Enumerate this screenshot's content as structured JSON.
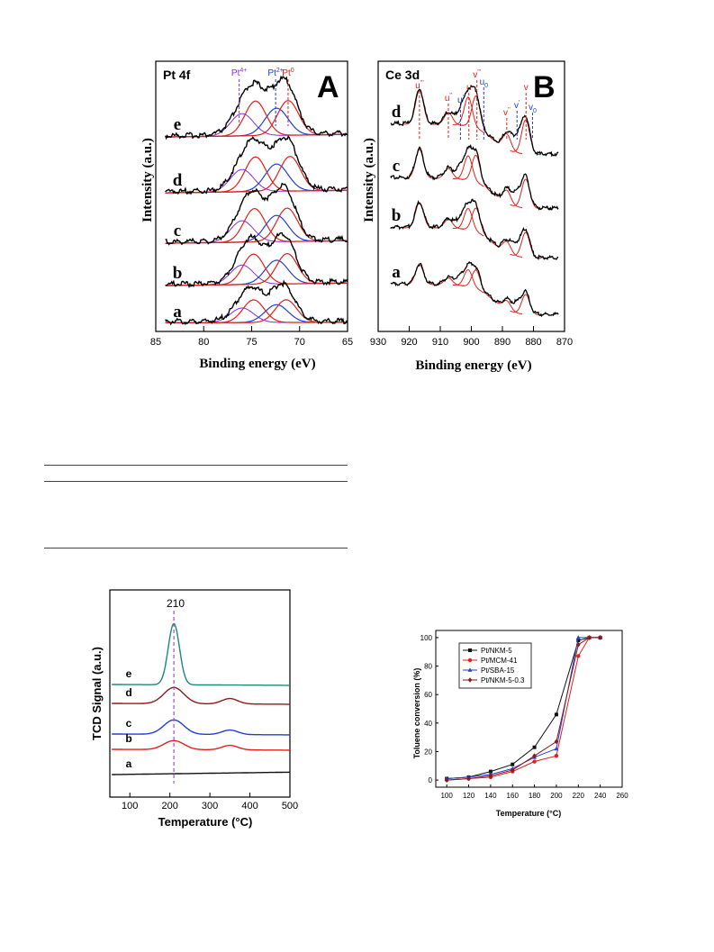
{
  "xps_pt": {
    "panel_label": "A",
    "element_label": "Pt 4f",
    "peak_labels": [
      {
        "text": "Pt",
        "sup": "4+",
        "color": "#8a2be2",
        "be": 76.3
      },
      {
        "text": "Pt",
        "sup": "2+",
        "color": "#1f3fd6",
        "be": 72.5
      },
      {
        "text": "Pt",
        "sup": "0",
        "color": "#e0201b",
        "be": 71.2
      }
    ],
    "xlabel": "Binding energy (eV)",
    "ylabel": "Intensity (a.u.)",
    "xlim": [
      85,
      65
    ],
    "xticks": [
      "85",
      "80",
      "75",
      "70",
      "65"
    ],
    "curve_labels": [
      "e",
      "d",
      "c",
      "b",
      "a"
    ]
  },
  "xps_ce": {
    "panel_label": "B",
    "element_label": "Ce 3d",
    "peak_labels": [
      {
        "text": "u",
        "sup": "'''",
        "color": "#e0201b",
        "be": 916.7
      },
      {
        "text": "u",
        "sup": "''",
        "color": "#e0201b",
        "be": 907.4
      },
      {
        "text": "u",
        "sup": "'",
        "color": "#1f3fd6",
        "be": 903.5
      },
      {
        "text": "u",
        "sup": "",
        "color": "#e0201b",
        "be": 900.8
      },
      {
        "text": "v",
        "sup": "'''",
        "color": "#e0201b",
        "be": 898.2
      },
      {
        "text": "u",
        "sub": "0",
        "color": "#1f3fd6",
        "be": 896.0
      },
      {
        "text": "v",
        "sup": "''",
        "color": "#e0201b",
        "be": 888.6
      },
      {
        "text": "v",
        "sup": "",
        "color": "#e0201b",
        "be": 882.4
      },
      {
        "text": "v",
        "sup": "'",
        "color": "#1f3fd6",
        "be": 885.3
      },
      {
        "text": "v",
        "sub": "0",
        "color": "#1f3fd6",
        "be": 880.3
      }
    ],
    "xlabel": "Binding energy (eV)",
    "ylabel": "Intensity (a.u.)",
    "xlim": [
      930,
      870
    ],
    "xticks": [
      "930",
      "920",
      "910",
      "900",
      "890",
      "880",
      "870"
    ],
    "curve_labels": [
      "d",
      "c",
      "b",
      "a"
    ]
  },
  "tpd": {
    "peak_label": "210",
    "xlabel": "Temperature (°C)",
    "ylabel": "TCD Signal (a.u.)",
    "xlim": [
      50,
      500
    ],
    "xticks": [
      "100",
      "200",
      "300",
      "400",
      "500"
    ],
    "curve_labels": [
      "e",
      "d",
      "c",
      "b",
      "a"
    ],
    "colors": [
      "#1a8a7c",
      "#8b1a1a",
      "#1f3fd6",
      "#e0201b",
      "#111111"
    ]
  },
  "conversion": {
    "xlabel": "Temperature (°C)",
    "ylabel": "Toluene conversion (%)",
    "xlim": [
      90,
      260
    ],
    "ylim": [
      -5,
      105
    ],
    "xticks": [
      "100",
      "120",
      "140",
      "160",
      "180",
      "200",
      "220",
      "240",
      "260"
    ],
    "yticks": [
      "0",
      "20",
      "40",
      "60",
      "80",
      "100"
    ]
  },
  "chart_data": [
    {
      "type": "line",
      "title": "Pt 4f",
      "xlabel": "Binding energy (eV)",
      "ylabel": "Intensity (a.u.)",
      "xlim": [
        85,
        65
      ],
      "series": [
        {
          "name": "e",
          "peaks_eV": [
            74.6,
            71.2
          ]
        },
        {
          "name": "d",
          "peaks_eV": [
            74.6,
            71.0
          ]
        },
        {
          "name": "c",
          "peaks_eV": [
            74.7,
            71.3
          ]
        },
        {
          "name": "b",
          "peaks_eV": [
            74.8,
            71.3
          ]
        },
        {
          "name": "a",
          "peaks_eV": [
            74.8,
            71.4
          ]
        }
      ]
    },
    {
      "type": "line",
      "title": "Ce 3d",
      "xlabel": "Binding energy (eV)",
      "ylabel": "Intensity (a.u.)",
      "xlim": [
        930,
        870
      ],
      "series": [
        {
          "name": "d",
          "peaks_eV": [
            916.7,
            907.4,
            901.0,
            898.5,
            888.6,
            882.5
          ]
        },
        {
          "name": "c",
          "peaks_eV": [
            916.7,
            907.4,
            901.0,
            898.5,
            888.6,
            882.5
          ]
        },
        {
          "name": "b",
          "peaks_eV": [
            916.7,
            907.4,
            901.0,
            898.5,
            888.6,
            882.5
          ]
        },
        {
          "name": "a",
          "peaks_eV": [
            916.7,
            907.4,
            901.0,
            898.5,
            888.6,
            882.5
          ]
        }
      ]
    },
    {
      "type": "line",
      "xlabel": "Temperature (°C)",
      "ylabel": "TCD Signal (a.u.)",
      "xlim": [
        50,
        500
      ],
      "series": [
        {
          "name": "e",
          "peak_temp": 210
        },
        {
          "name": "d",
          "peak_temp": 210
        },
        {
          "name": "c",
          "peak_temp": 210
        },
        {
          "name": "b",
          "peak_temp": 210
        },
        {
          "name": "a",
          "peak_temp": null
        }
      ]
    },
    {
      "type": "line",
      "xlabel": "Temperature (°C)",
      "ylabel": "Toluene conversion (%)",
      "x": [
        100,
        120,
        140,
        160,
        180,
        200,
        220,
        230,
        240
      ],
      "ylim": [
        0,
        100
      ],
      "legend": "top-left",
      "series": [
        {
          "name": "Pt/NKM-5",
          "color": "#111111",
          "marker": "square",
          "values": [
            1,
            2,
            6,
            11,
            23,
            46,
            98,
            100,
            100
          ]
        },
        {
          "name": "Pt/MCM-41",
          "color": "#e0201b",
          "marker": "circle",
          "values": [
            0,
            1,
            2,
            6,
            13,
            17,
            87,
            100,
            100
          ]
        },
        {
          "name": "Pt/SBA-15",
          "color": "#1f3fd6",
          "marker": "triangle",
          "values": [
            1,
            2,
            4,
            8,
            16,
            22,
            100,
            100,
            100
          ]
        },
        {
          "name": "Pt/NKM-5-0.3",
          "color": "#8b1a1a",
          "marker": "diamond",
          "values": [
            0,
            1,
            3,
            7,
            17,
            27,
            95,
            100,
            100
          ]
        }
      ]
    }
  ]
}
